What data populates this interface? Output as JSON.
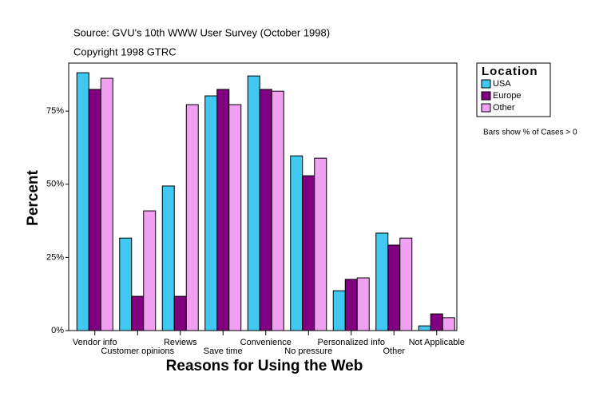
{
  "chart_data": {
    "type": "bar",
    "title": "Source: GVU's 10th WWW User Survey (October 1998)",
    "subtitle": "Copyright 1998 GTRC",
    "x_label": "Reasons for Using the Web",
    "y_label": "Percent",
    "legend_title": "Location",
    "note": "Bars show % of Cases > 0",
    "categories": [
      "Vendor info",
      "Customer opinions",
      "Reviews",
      "Save time",
      "Convenience",
      "No pressure",
      "Personalized info",
      "Other",
      "Not Applicable"
    ],
    "series": [
      {
        "name": "USA",
        "color": "#40c8f0",
        "values": [
          88.1,
          31.6,
          49.4,
          80.2,
          87.0,
          59.7,
          13.6,
          33.3,
          1.6
        ]
      },
      {
        "name": "Europe",
        "color": "#800080",
        "values": [
          82.4,
          11.7,
          11.7,
          82.4,
          82.4,
          52.9,
          17.5,
          29.2,
          5.7
        ]
      },
      {
        "name": "Other",
        "color": "#f0a0f0",
        "values": [
          86.2,
          40.9,
          77.2,
          77.2,
          81.8,
          58.9,
          18.0,
          31.6,
          4.4
        ]
      }
    ],
    "ylim": [
      0,
      91.4
    ],
    "yticks": [
      {
        "value": 0,
        "label": "0%"
      },
      {
        "value": 25,
        "label": "25%"
      },
      {
        "value": 50,
        "label": "50%"
      },
      {
        "value": 75,
        "label": "75%"
      }
    ],
    "legend_position": "right",
    "grid": false
  }
}
